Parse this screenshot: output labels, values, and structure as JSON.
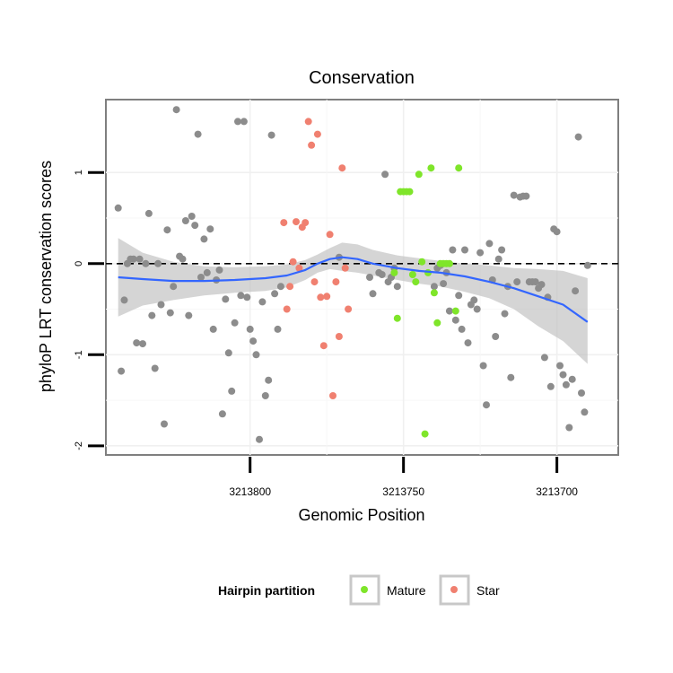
{
  "chart_data": {
    "type": "scatter",
    "title": "Conservation",
    "xlabel": "Genomic Position",
    "ylabel": "phyloP LRT conservation scores",
    "x_reversed": true,
    "xlim": [
      3213847,
      3213680
    ],
    "ylim": [
      -2.1,
      1.8
    ],
    "x_ticks": [
      {
        "value": 3213800,
        "label": "3213800"
      },
      {
        "value": 3213750,
        "label": "3213750"
      },
      {
        "value": 3213700,
        "label": "3213700"
      }
    ],
    "y_ticks": [
      {
        "value": -2,
        "label": "-2"
      },
      {
        "value": -1,
        "label": "-1"
      },
      {
        "value": 0,
        "label": "0"
      },
      {
        "value": 1,
        "label": "1"
      }
    ],
    "reference_line": {
      "y": 0,
      "style": "dashed",
      "color": "#000000"
    },
    "grid": true,
    "legend": {
      "title": "Hairpin partition",
      "position": "bottom",
      "items": [
        {
          "label": "Mature",
          "color": "#7FE52A"
        },
        {
          "label": "Star",
          "color": "#F08070"
        }
      ]
    },
    "series": [
      {
        "group": "other",
        "color": "#8C8C8C",
        "points": [
          [
            3213843,
            0.61
          ],
          [
            3213842,
            -1.18
          ],
          [
            3213841,
            -0.4
          ],
          [
            3213840,
            0.0
          ],
          [
            3213839,
            0.05
          ],
          [
            3213838,
            0.05
          ],
          [
            3213837,
            -0.87
          ],
          [
            3213836,
            0.05
          ],
          [
            3213835,
            -0.88
          ],
          [
            3213834,
            0.0
          ],
          [
            3213833,
            0.55
          ],
          [
            3213832,
            -0.57
          ],
          [
            3213831,
            -1.15
          ],
          [
            3213830,
            0.0
          ],
          [
            3213829,
            -0.45
          ],
          [
            3213828,
            -1.76
          ],
          [
            3213827,
            0.37
          ],
          [
            3213826,
            -0.54
          ],
          [
            3213825,
            -0.25
          ],
          [
            3213824,
            1.69
          ],
          [
            3213823,
            0.08
          ],
          [
            3213822,
            0.05
          ],
          [
            3213821,
            0.47
          ],
          [
            3213820,
            -0.57
          ],
          [
            3213819,
            0.52
          ],
          [
            3213818,
            0.42
          ],
          [
            3213817,
            1.42
          ],
          [
            3213816,
            -0.15
          ],
          [
            3213815,
            0.27
          ],
          [
            3213814,
            -0.1
          ],
          [
            3213813,
            0.38
          ],
          [
            3213812,
            -0.72
          ],
          [
            3213811,
            -0.18
          ],
          [
            3213810,
            -0.07
          ],
          [
            3213809,
            -1.65
          ],
          [
            3213808,
            -0.39
          ],
          [
            3213807,
            -0.98
          ],
          [
            3213806,
            -1.4
          ],
          [
            3213805,
            -0.65
          ],
          [
            3213804,
            1.56
          ],
          [
            3213803,
            -0.35
          ],
          [
            3213802,
            1.56
          ],
          [
            3213801,
            -0.37
          ],
          [
            3213800,
            -0.72
          ],
          [
            3213799,
            -0.85
          ],
          [
            3213798,
            -1.0
          ],
          [
            3213797,
            -1.93
          ],
          [
            3213796,
            -0.42
          ],
          [
            3213795,
            -1.45
          ],
          [
            3213794,
            -1.28
          ],
          [
            3213793,
            1.41
          ],
          [
            3213792,
            -0.33
          ],
          [
            3213791,
            -0.72
          ],
          [
            3213790,
            -0.25
          ],
          [
            3213771,
            0.07
          ],
          [
            3213761,
            -0.15
          ],
          [
            3213760,
            -0.33
          ],
          [
            3213758,
            -0.1
          ],
          [
            3213757,
            -0.12
          ],
          [
            3213756,
            0.98
          ],
          [
            3213755,
            -0.2
          ],
          [
            3213754,
            -0.15
          ],
          [
            3213753,
            -0.05
          ],
          [
            3213752,
            -0.25
          ],
          [
            3213740,
            -0.25
          ],
          [
            3213739,
            -0.05
          ],
          [
            3213738,
            -0.02
          ],
          [
            3213737,
            -0.22
          ],
          [
            3213736,
            -0.1
          ],
          [
            3213735,
            -0.52
          ],
          [
            3213734,
            0.15
          ],
          [
            3213733,
            -0.62
          ],
          [
            3213732,
            -0.35
          ],
          [
            3213731,
            -0.72
          ],
          [
            3213730,
            0.15
          ],
          [
            3213729,
            -0.87
          ],
          [
            3213728,
            -0.45
          ],
          [
            3213727,
            -0.4
          ],
          [
            3213726,
            -0.5
          ],
          [
            3213725,
            0.12
          ],
          [
            3213724,
            -1.12
          ],
          [
            3213723,
            -1.55
          ],
          [
            3213722,
            0.22
          ],
          [
            3213721,
            -0.18
          ],
          [
            3213720,
            -0.8
          ],
          [
            3213719,
            0.05
          ],
          [
            3213718,
            0.15
          ],
          [
            3213717,
            -0.55
          ],
          [
            3213716,
            -0.25
          ],
          [
            3213715,
            -1.25
          ],
          [
            3213714,
            0.75
          ],
          [
            3213713,
            -0.2
          ],
          [
            3213712,
            0.73
          ],
          [
            3213711,
            0.74
          ],
          [
            3213710,
            0.74
          ],
          [
            3213709,
            -0.2
          ],
          [
            3213708,
            -0.2
          ],
          [
            3213707,
            -0.2
          ],
          [
            3213706,
            -0.27
          ],
          [
            3213705,
            -0.23
          ],
          [
            3213704,
            -1.03
          ],
          [
            3213703,
            -0.37
          ],
          [
            3213702,
            -1.35
          ],
          [
            3213701,
            0.38
          ],
          [
            3213700,
            0.35
          ],
          [
            3213699,
            -1.12
          ],
          [
            3213698,
            -1.22
          ],
          [
            3213697,
            -1.33
          ],
          [
            3213696,
            -1.8
          ],
          [
            3213695,
            -1.27
          ],
          [
            3213694,
            -0.3
          ],
          [
            3213693,
            1.39
          ],
          [
            3213692,
            -1.42
          ],
          [
            3213691,
            -1.63
          ],
          [
            3213690,
            -0.02
          ]
        ]
      },
      {
        "group": "Mature",
        "color": "#7FE52A",
        "points": [
          [
            3213753,
            -0.1
          ],
          [
            3213752,
            -0.6
          ],
          [
            3213751,
            0.79
          ],
          [
            3213750,
            0.79
          ],
          [
            3213749,
            0.79
          ],
          [
            3213748,
            0.79
          ],
          [
            3213747,
            -0.12
          ],
          [
            3213746,
            -0.2
          ],
          [
            3213745,
            0.98
          ],
          [
            3213744,
            0.02
          ],
          [
            3213743,
            -1.87
          ],
          [
            3213742,
            -0.1
          ],
          [
            3213741,
            1.05
          ],
          [
            3213740,
            -0.32
          ],
          [
            3213739,
            -0.65
          ],
          [
            3213738,
            0.0
          ],
          [
            3213737,
            0.0
          ],
          [
            3213736,
            0.0
          ],
          [
            3213735,
            0.0
          ],
          [
            3213733,
            -0.52
          ],
          [
            3213732,
            1.05
          ]
        ]
      },
      {
        "group": "Star",
        "color": "#F08070",
        "points": [
          [
            3213789,
            0.45
          ],
          [
            3213788,
            -0.5
          ],
          [
            3213787,
            -0.25
          ],
          [
            3213786,
            0.02
          ],
          [
            3213785,
            0.46
          ],
          [
            3213784,
            -0.05
          ],
          [
            3213783,
            0.4
          ],
          [
            3213782,
            0.45
          ],
          [
            3213781,
            1.56
          ],
          [
            3213780,
            1.3
          ],
          [
            3213779,
            -0.2
          ],
          [
            3213778,
            1.42
          ],
          [
            3213777,
            -0.37
          ],
          [
            3213776,
            -0.9
          ],
          [
            3213775,
            -0.36
          ],
          [
            3213774,
            0.32
          ],
          [
            3213773,
            -1.45
          ],
          [
            3213772,
            -0.2
          ],
          [
            3213771,
            -0.8
          ],
          [
            3213770,
            1.05
          ],
          [
            3213769,
            -0.05
          ],
          [
            3213768,
            -0.5
          ]
        ]
      }
    ],
    "smooth": {
      "method": "loess",
      "color": "#3366FF",
      "band_color": "#BEBEBE",
      "points": [
        [
          3213843,
          -0.15,
          0.28,
          -0.58
        ],
        [
          3213835,
          -0.17,
          0.12,
          -0.46
        ],
        [
          3213825,
          -0.19,
          0.02,
          -0.4
        ],
        [
          3213815,
          -0.19,
          -0.03,
          -0.35
        ],
        [
          3213805,
          -0.18,
          -0.04,
          -0.32
        ],
        [
          3213795,
          -0.16,
          -0.03,
          -0.3
        ],
        [
          3213788,
          -0.13,
          -0.01,
          -0.26
        ],
        [
          3213782,
          -0.07,
          0.04,
          -0.18
        ],
        [
          3213778,
          0.0,
          0.1,
          -0.1
        ],
        [
          3213774,
          0.05,
          0.17,
          -0.06
        ],
        [
          3213770,
          0.07,
          0.23,
          -0.08
        ],
        [
          3213765,
          0.05,
          0.21,
          -0.1
        ],
        [
          3213760,
          0.0,
          0.15,
          -0.13
        ],
        [
          3213752,
          -0.05,
          0.09,
          -0.18
        ],
        [
          3213745,
          -0.08,
          0.06,
          -0.22
        ],
        [
          3213738,
          -0.1,
          0.03,
          -0.25
        ],
        [
          3213730,
          -0.14,
          0.0,
          -0.31
        ],
        [
          3213722,
          -0.2,
          -0.02,
          -0.38
        ],
        [
          3213714,
          -0.27,
          -0.05,
          -0.5
        ],
        [
          3213706,
          -0.36,
          -0.06,
          -0.69
        ],
        [
          3213698,
          -0.45,
          -0.08,
          -0.85
        ],
        [
          3213690,
          -0.64,
          -0.16,
          -1.1
        ]
      ]
    }
  }
}
